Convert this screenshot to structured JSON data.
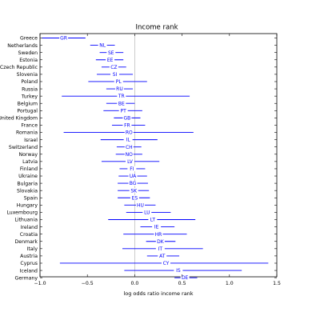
{
  "chart_data": {
    "type": "errorbar",
    "title": "Income rank",
    "xlabel": "log odds ratio income rank",
    "ylabel": "",
    "xlim": [
      -1.0,
      1.5
    ],
    "xticks": [
      "−1.0",
      "−0.5",
      "0.0",
      "0.5",
      "1.0",
      "1.5"
    ],
    "xtick_values": [
      -1.0,
      -0.5,
      0.0,
      0.5,
      1.0,
      1.5
    ],
    "reference_line_x": 0.0,
    "grid": false,
    "series_color": "#0000ff",
    "refline_color": "#c0c0c0",
    "countries": [
      {
        "name": "Greece",
        "code": "GR",
        "estimate": -0.75,
        "low": -0.98,
        "high": -0.52
      },
      {
        "name": "Netherlands",
        "code": "NL",
        "estimate": -0.34,
        "low": -0.47,
        "high": -0.21
      },
      {
        "name": "Sweden",
        "code": "SE",
        "estimate": -0.25,
        "low": -0.37,
        "high": -0.12
      },
      {
        "name": "Estonia",
        "code": "EE",
        "estimate": -0.26,
        "low": -0.41,
        "high": -0.12
      },
      {
        "name": "Czech Republic",
        "code": "CZ",
        "estimate": -0.22,
        "low": -0.35,
        "high": -0.09
      },
      {
        "name": "Slovenia",
        "code": "SI",
        "estimate": -0.21,
        "low": -0.4,
        "high": -0.02
      },
      {
        "name": "Poland",
        "code": "PL",
        "estimate": -0.17,
        "low": -0.49,
        "high": 0.13
      },
      {
        "name": "Russia",
        "code": "RU",
        "estimate": -0.16,
        "low": -0.3,
        "high": -0.02
      },
      {
        "name": "Turkey",
        "code": "TR",
        "estimate": -0.14,
        "low": -0.77,
        "high": 0.58
      },
      {
        "name": "Belgium",
        "code": "BE",
        "estimate": -0.14,
        "low": -0.3,
        "high": 0.0
      },
      {
        "name": "Portugal",
        "code": "PT",
        "estimate": -0.12,
        "low": -0.33,
        "high": 0.08
      },
      {
        "name": "United Kingdom",
        "code": "GB",
        "estimate": -0.08,
        "low": -0.22,
        "high": 0.06
      },
      {
        "name": "France",
        "code": "FR",
        "estimate": -0.08,
        "low": -0.24,
        "high": 0.11
      },
      {
        "name": "Romania",
        "code": "RO",
        "estimate": -0.06,
        "low": -0.75,
        "high": 0.62
      },
      {
        "name": "Israel",
        "code": "IL",
        "estimate": -0.07,
        "low": -0.36,
        "high": 0.24
      },
      {
        "name": "Switzerland",
        "code": "CH",
        "estimate": -0.06,
        "low": -0.19,
        "high": 0.07
      },
      {
        "name": "Norway",
        "code": "NO",
        "estimate": -0.06,
        "low": -0.2,
        "high": 0.08
      },
      {
        "name": "Latvia",
        "code": "LV",
        "estimate": -0.05,
        "low": -0.35,
        "high": 0.26
      },
      {
        "name": "Finland",
        "code": "FI",
        "estimate": -0.03,
        "low": -0.16,
        "high": 0.11
      },
      {
        "name": "Ukraine",
        "code": "UA",
        "estimate": -0.02,
        "low": -0.17,
        "high": 0.13
      },
      {
        "name": "Bulgaria",
        "code": "BG",
        "estimate": -0.02,
        "low": -0.18,
        "high": 0.14
      },
      {
        "name": "Slovakia",
        "code": "SK",
        "estimate": -0.01,
        "low": -0.18,
        "high": 0.15
      },
      {
        "name": "Spain",
        "code": "ES",
        "estimate": 0.0,
        "low": -0.18,
        "high": 0.16
      },
      {
        "name": "Hungary",
        "code": "HU",
        "estimate": 0.06,
        "low": -0.11,
        "high": 0.22
      },
      {
        "name": "Luxembourg",
        "code": "LU",
        "estimate": 0.13,
        "low": -0.09,
        "high": 0.38
      },
      {
        "name": "Lithuania",
        "code": "LT",
        "estimate": 0.19,
        "low": -0.28,
        "high": 0.64
      },
      {
        "name": "Ireland",
        "code": "IE",
        "estimate": 0.23,
        "low": 0.06,
        "high": 0.42
      },
      {
        "name": "Croatia",
        "code": "HR",
        "estimate": 0.25,
        "low": -0.12,
        "high": 0.55
      },
      {
        "name": "Denmark",
        "code": "DK",
        "estimate": 0.27,
        "low": 0.12,
        "high": 0.43
      },
      {
        "name": "Italy",
        "code": "IT",
        "estimate": 0.27,
        "low": -0.13,
        "high": 0.72
      },
      {
        "name": "Austria",
        "code": "AT",
        "estimate": 0.29,
        "low": 0.13,
        "high": 0.47
      },
      {
        "name": "Cyprus",
        "code": "CY",
        "estimate": 0.33,
        "low": -0.79,
        "high": 1.41
      },
      {
        "name": "Iceland",
        "code": "IS",
        "estimate": 0.46,
        "low": -0.11,
        "high": 1.13
      },
      {
        "name": "Germany",
        "code": "DE",
        "estimate": 0.53,
        "low": 0.42,
        "high": 0.66
      }
    ]
  }
}
